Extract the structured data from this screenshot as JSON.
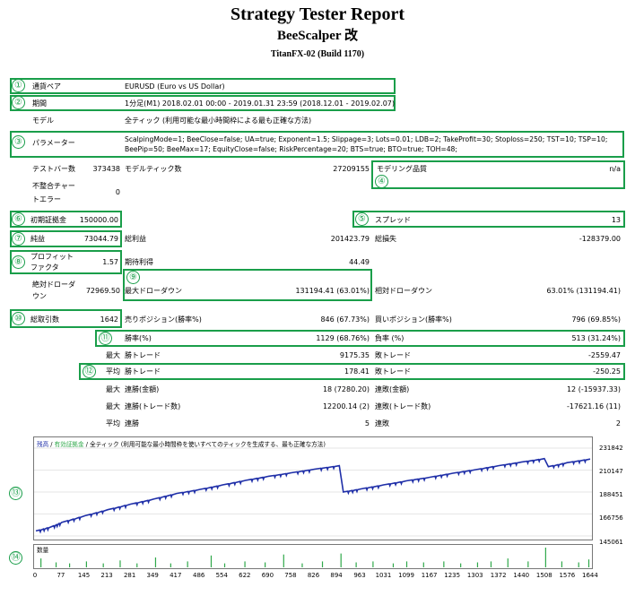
{
  "header": {
    "title": "Strategy Tester Report",
    "subtitle": "BeeScalper 改",
    "build": "TitanFX-02 (Build 1170)"
  },
  "badges": [
    "①",
    "②",
    "③",
    "④",
    "⑤",
    "⑥",
    "⑦",
    "⑧",
    "⑨",
    "⑩",
    "⑪",
    "⑫",
    "⑬",
    "⑭"
  ],
  "rows": {
    "pair_label": "通貨ペア",
    "pair_value": "EURUSD (Euro vs US Dollar)",
    "period_label": "期間",
    "period_value": "1分足(M1) 2018.02.01 00:00 - 2019.01.31 23:59 (2018.12.01 - 2019.02.07)",
    "model_label": "モデル",
    "model_value": "全ティック (利用可能な最小時間枠による最も正確な方法)",
    "params_label": "パラメーター",
    "params_value": "ScalpingMode=1; BeeClose=false; UA=true; Exponent=1.5; Slippage=3; Lots=0.01; LDB=2; TakeProfit=30; Stoploss=250; TST=10; TSP=10; BeePip=50; BeeMax=17; EquityClose=false; RiskPercentage=20; BTS=true; BTO=true; TOH=48;",
    "bars_label": "テストバー数",
    "bars_value": "373438",
    "ticks_label": "モデルティック数",
    "ticks_value": "27209155",
    "quality_label": "モデリング品質",
    "quality_value": "n/a",
    "mismatch_label_1": "不整合チャー",
    "mismatch_label_2": "トエラー",
    "mismatch_value": "0",
    "deposit_label": "初期証拠金",
    "deposit_value": "150000.00",
    "spread_label": "スプレッド",
    "spread_value": "13",
    "net_label": "純益",
    "net_value": "73044.79",
    "gross_profit_label": "総利益",
    "gross_profit_value": "201423.79",
    "gross_loss_label": "総損失",
    "gross_loss_value": "-128379.00",
    "pf_label_1": "プロフィット",
    "pf_label_2": "ファクタ",
    "pf_value": "1.57",
    "expected_label": "期待利得",
    "expected_value": "44.49",
    "abs_dd_label_1": "絶対ドローダ",
    "abs_dd_label_2": "ウン",
    "abs_dd_value": "72969.50",
    "max_dd_label": "最大ドローダウン",
    "max_dd_value": "131194.41 (63.01%)",
    "rel_dd_label": "相対ドローダウン",
    "rel_dd_value": "63.01% (131194.41)",
    "trades_label": "総取引数",
    "trades_value": "1642",
    "short_label": "売りポジション(勝率%)",
    "short_value": "846 (67.73%)",
    "long_label": "買いポジション(勝率%)",
    "long_value": "796 (69.85%)",
    "win_label": "勝率(%)",
    "win_value": "1129 (68.76%)",
    "loss_label": "負率 (%)",
    "loss_value": "513 (31.24%)",
    "max_word": "最大",
    "avg_word": "平均",
    "max_win_label": "勝トレード",
    "max_win_value": "9175.35",
    "max_loss_label": "敗トレード",
    "max_loss_value": "-2559.47",
    "avg_win_label": "勝トレード",
    "avg_win_value": "178.41",
    "avg_loss_label": "敗トレード",
    "avg_loss_value": "-250.25",
    "cons_win_money_label": "連勝(金額)",
    "cons_win_money_value": "18 (7280.20)",
    "cons_loss_money_label": "連敗(金額)",
    "cons_loss_money_value": "12 (-15937.33)",
    "cons_win_count_label": "連勝(トレード数)",
    "cons_win_count_value": "12200.14 (2)",
    "cons_loss_count_label": "連敗(トレード数)",
    "cons_loss_count_value": "-17621.16 (11)",
    "avg_cons_win_label": "連勝",
    "avg_cons_win_value": "5",
    "avg_cons_loss_label": "連敗",
    "avg_cons_loss_value": "2"
  },
  "chart_data": [
    {
      "type": "line",
      "legend": [
        "残高",
        "有効証拠金",
        "全ティック (利用可能な最小時間枠を使いすべてのティックを生成する、最も正確な方法)"
      ],
      "legend_sep": "/",
      "y_ticks": [
        "231842",
        "210147",
        "188451",
        "166756",
        "145061"
      ],
      "ylim": [
        145061,
        231842
      ],
      "x_ticks": [
        "0",
        "77",
        "145",
        "213",
        "281",
        "349",
        "417",
        "486",
        "554",
        "622",
        "690",
        "758",
        "826",
        "894",
        "963",
        "1031",
        "1099",
        "1167",
        "1235",
        "1303",
        "1372",
        "1440",
        "1508",
        "1576",
        "1644"
      ],
      "xlim": [
        0,
        1644
      ],
      "series": [
        {
          "name": "残高",
          "color": "#1f2fa8",
          "x": [
            0,
            45,
            77,
            145,
            213,
            281,
            349,
            417,
            486,
            554,
            622,
            690,
            758,
            826,
            900,
            912,
            963,
            1031,
            1099,
            1167,
            1235,
            1303,
            1372,
            1440,
            1508,
            1520,
            1576,
            1644
          ],
          "y": [
            150000,
            154000,
            158500,
            165000,
            171000,
            176500,
            181500,
            187000,
            191000,
            195500,
            200000,
            204000,
            207500,
            211000,
            214500,
            188500,
            191500,
            195500,
            199500,
            203000,
            207000,
            210500,
            214500,
            218000,
            221500,
            213500,
            217500,
            221000
          ]
        }
      ]
    },
    {
      "type": "bar",
      "legend": [
        "数量"
      ],
      "x_ticks": [
        "0",
        "77",
        "145",
        "213",
        "281",
        "349",
        "417",
        "486",
        "554",
        "622",
        "690",
        "758",
        "826",
        "894",
        "963",
        "1031",
        "1099",
        "1167",
        "1235",
        "1303",
        "1372",
        "1440",
        "1508",
        "1576",
        "1644"
      ],
      "xlim": [
        0,
        1644
      ],
      "color": "#2fa84a",
      "spikes": [
        {
          "x": 15,
          "v": 0.45
        },
        {
          "x": 60,
          "v": 0.25
        },
        {
          "x": 100,
          "v": 0.2
        },
        {
          "x": 150,
          "v": 0.3
        },
        {
          "x": 200,
          "v": 0.2
        },
        {
          "x": 250,
          "v": 0.35
        },
        {
          "x": 300,
          "v": 0.2
        },
        {
          "x": 355,
          "v": 0.5
        },
        {
          "x": 400,
          "v": 0.2
        },
        {
          "x": 450,
          "v": 0.3
        },
        {
          "x": 520,
          "v": 0.6
        },
        {
          "x": 560,
          "v": 0.2
        },
        {
          "x": 620,
          "v": 0.3
        },
        {
          "x": 680,
          "v": 0.25
        },
        {
          "x": 735,
          "v": 0.65
        },
        {
          "x": 790,
          "v": 0.2
        },
        {
          "x": 850,
          "v": 0.3
        },
        {
          "x": 905,
          "v": 0.7
        },
        {
          "x": 950,
          "v": 0.25
        },
        {
          "x": 1000,
          "v": 0.3
        },
        {
          "x": 1060,
          "v": 0.2
        },
        {
          "x": 1100,
          "v": 0.3
        },
        {
          "x": 1150,
          "v": 0.25
        },
        {
          "x": 1210,
          "v": 0.3
        },
        {
          "x": 1260,
          "v": 0.2
        },
        {
          "x": 1310,
          "v": 0.25
        },
        {
          "x": 1350,
          "v": 0.3
        },
        {
          "x": 1400,
          "v": 0.45
        },
        {
          "x": 1460,
          "v": 0.3
        },
        {
          "x": 1512,
          "v": 1.0
        },
        {
          "x": 1560,
          "v": 0.3
        },
        {
          "x": 1610,
          "v": 0.25
        },
        {
          "x": 1640,
          "v": 0.4
        }
      ]
    }
  ]
}
